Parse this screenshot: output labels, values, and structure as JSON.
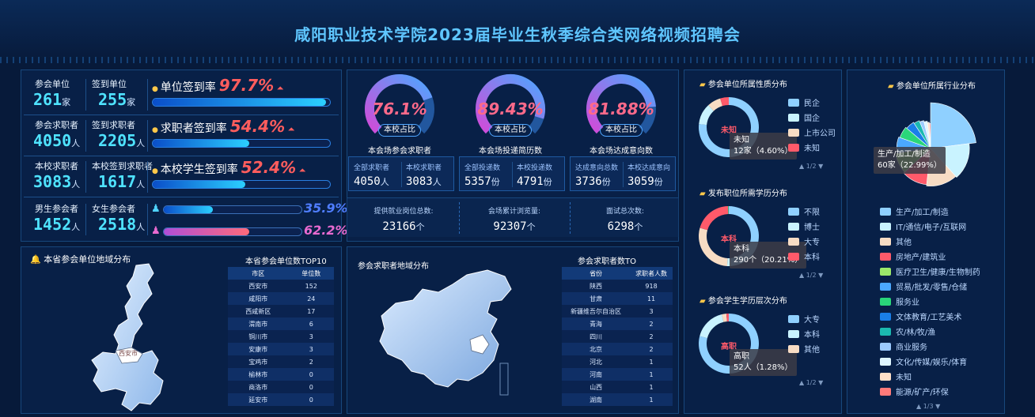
{
  "header": {
    "title": "咸阳职业技术学院2023届毕业生秋季综合类网络视频招聘会"
  },
  "stats": [
    {
      "left_label": "参会单位",
      "left_value": "261",
      "left_unit": "家",
      "right_label": "签到单位",
      "right_value": "255",
      "right_unit": "家",
      "rate_label": "单位签到率",
      "rate_value": "97.7%",
      "rate": 0.977
    },
    {
      "left_label": "参会求职者",
      "left_value": "4050",
      "left_unit": "人",
      "right_label": "签到求职者",
      "right_value": "2205",
      "right_unit": "人",
      "rate_label": "求职者签到率",
      "rate_value": "54.4%",
      "rate": 0.544
    },
    {
      "left_label": "本校求职者",
      "left_value": "3083",
      "left_unit": "人",
      "right_label": "本校签到求职者",
      "right_value": "1617",
      "right_unit": "人",
      "rate_label": "本校学生签到率",
      "rate_value": "52.4%",
      "rate": 0.524
    },
    {
      "left_label": "男生参会者",
      "left_value": "1452",
      "left_unit": "人",
      "right_label": "女生参会者",
      "right_value": "2518",
      "right_unit": "人"
    }
  ],
  "gender": {
    "male_pct": "35.9%",
    "female_pct": "62.2%",
    "male": 0.359,
    "female": 0.622
  },
  "gauges": [
    {
      "value": "76.1%",
      "fraction": 0.761,
      "caption": "本校占比",
      "title": "本会场参会求职者",
      "a_label": "全部求职者",
      "a_value": "4050",
      "a_unit": "人",
      "b_label": "本校求职者",
      "b_value": "3083",
      "b_unit": "人"
    },
    {
      "value": "89.43%",
      "fraction": 0.8943,
      "caption": "本校占比",
      "title": "本会场投递简历数",
      "a_label": "全部投递数",
      "a_value": "5357",
      "a_unit": "份",
      "b_label": "本校投递数",
      "b_value": "4791",
      "b_unit": "份"
    },
    {
      "value": "81.88%",
      "fraction": 0.8188,
      "caption": "本校占比",
      "title": "本会场达成意向数",
      "a_label": "达成意向总数",
      "a_value": "3736",
      "a_unit": "份",
      "b_label": "本校达成意向",
      "b_value": "3059",
      "b_unit": "份"
    }
  ],
  "totals": [
    {
      "label": "提供就业岗位总数:",
      "value": "23166",
      "unit": "个"
    },
    {
      "label": "会场累计浏览量:",
      "value": "92307",
      "unit": "个"
    },
    {
      "label": "面试总次数:",
      "value": "6298",
      "unit": "个"
    }
  ],
  "province_map": {
    "title": "本省参会单位地域分布",
    "label": "西安市"
  },
  "top10": {
    "title": "本省参会单位数TOP10",
    "headers": [
      "市区",
      "单位数"
    ],
    "rows": [
      [
        "西安市",
        "152"
      ],
      [
        "咸阳市",
        "24"
      ],
      [
        "西咸新区",
        "17"
      ],
      [
        "渭南市",
        "6"
      ],
      [
        "铜川市",
        "3"
      ],
      [
        "安康市",
        "3"
      ],
      [
        "宝鸡市",
        "2"
      ],
      [
        "榆林市",
        "0"
      ],
      [
        "商洛市",
        "0"
      ],
      [
        "延安市",
        "0"
      ]
    ]
  },
  "china_map": {
    "title": "参会求职者地域分布"
  },
  "seekers": {
    "title": "参会求职者数TO",
    "headers": [
      "省份",
      "求职者人数"
    ],
    "rows": [
      [
        "陕西",
        "918"
      ],
      [
        "甘肃",
        "11"
      ],
      [
        "新疆维吾尔自治区",
        "3"
      ],
      [
        "青海",
        "2"
      ],
      [
        "四川",
        "2"
      ],
      [
        "北京",
        "2"
      ],
      [
        "河北",
        "1"
      ],
      [
        "河南",
        "1"
      ],
      [
        "山西",
        "1"
      ],
      [
        "湖南",
        "1"
      ]
    ]
  },
  "nature": {
    "title": "参会单位所属性质分布",
    "center": "未知",
    "tip_name": "未知",
    "tip_value": "12家（4.60%）",
    "legend": [
      {
        "name": "民企",
        "color": "#8fd0ff"
      },
      {
        "name": "国企",
        "color": "#c9f3ff"
      },
      {
        "name": "上市公司",
        "color": "#f7dcc4"
      },
      {
        "name": "未知",
        "color": "#ff5a6a"
      }
    ],
    "pager": "1/2"
  },
  "nature_chart": {
    "type": "pie",
    "series": [
      {
        "values": [
          200,
          30,
          19,
          12
        ],
        "colors": [
          "#8fd0ff",
          "#c9f3ff",
          "#f7dcc4",
          "#ff5a6a"
        ]
      }
    ]
  },
  "edu_req": {
    "title": "发布职位所需学历分布",
    "center": "本科",
    "tip_name": "本科",
    "tip_value": "290个（20.21%）",
    "legend": [
      {
        "name": "不限",
        "color": "#8fd0ff"
      },
      {
        "name": "博士",
        "color": "#c9f3ff"
      },
      {
        "name": "大专",
        "color": "#f7dcc4"
      },
      {
        "name": "本科",
        "color": "#ff5a6a"
      }
    ],
    "pager": "1/2"
  },
  "edu_chart": {
    "type": "pie",
    "series": [
      {
        "values": [
          700,
          30,
          410,
          290,
          5
        ],
        "colors": [
          "#8fd0ff",
          "#c9f3ff",
          "#f7dcc4",
          "#ff5a6a",
          "#2ad67a"
        ]
      }
    ]
  },
  "stu_level": {
    "title": "参会学生学历层次分布",
    "center": "高职",
    "tip_name": "高职",
    "tip_value": "52人（1.28%）",
    "legend": [
      {
        "name": "大专",
        "color": "#8fd0ff"
      },
      {
        "name": "本科",
        "color": "#c9f3ff"
      },
      {
        "name": "其他",
        "color": "#f7dcc4"
      }
    ],
    "pager": "1/2"
  },
  "stu_chart": {
    "type": "pie",
    "series": [
      {
        "values": [
          3200,
          700,
          100,
          52
        ],
        "colors": [
          "#8fd0ff",
          "#c9f3ff",
          "#f7dcc4",
          "#ff5a6a"
        ]
      }
    ]
  },
  "industry": {
    "title": "参会单位所属行业分布",
    "tip_name": "生产/加工/制造",
    "tip_value": "60家（22.99%）",
    "legend": [
      {
        "name": "生产/加工/制造",
        "color": "#8fd0ff"
      },
      {
        "name": "IT/通信/电子/互联网",
        "color": "#c9f3ff"
      },
      {
        "name": "其他",
        "color": "#f7dcc4"
      },
      {
        "name": "房地产/建筑业",
        "color": "#ff5a6a"
      },
      {
        "name": "医疗卫生/健康/生物制药",
        "color": "#9ce86a"
      },
      {
        "name": "贸易/批发/零售/仓储",
        "color": "#4ba9ff"
      },
      {
        "name": "服务业",
        "color": "#2ad67a"
      },
      {
        "name": "文体教育/工艺美术",
        "color": "#1a7fe8"
      },
      {
        "name": "农/林/牧/渔",
        "color": "#1bb9b0"
      },
      {
        "name": "商业服务",
        "color": "#9ccbff"
      },
      {
        "name": "文化/传媒/娱乐/体育",
        "color": "#dff6ff"
      },
      {
        "name": "未知",
        "color": "#ffe0c8"
      },
      {
        "name": "能源/矿产/环保",
        "color": "#ff7a7a"
      }
    ],
    "pager": "1/3"
  },
  "industry_chart": {
    "type": "pie",
    "series": [
      {
        "values": [
          60,
          40,
          35,
          30,
          25,
          20,
          15,
          12,
          8,
          6,
          5,
          3,
          2
        ]
      }
    ]
  }
}
